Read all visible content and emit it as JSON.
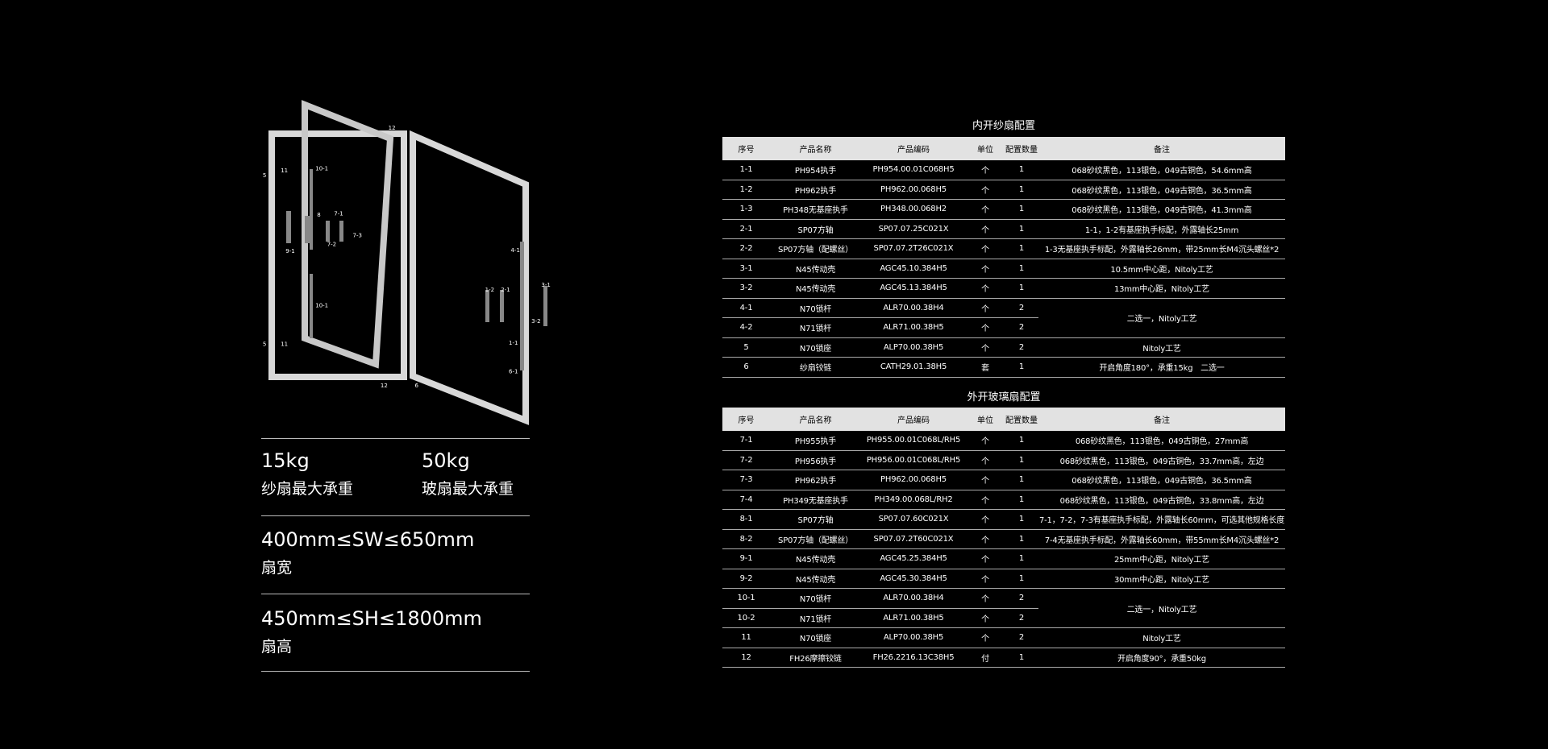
{
  "diagram": {
    "labels": [
      "12",
      "10-1",
      "11",
      "5",
      "9-1",
      "8",
      "7-1",
      "7-3",
      "7-2",
      "10-1",
      "5",
      "11",
      "12",
      "6",
      "4-1",
      "1-2",
      "2-1",
      "3-1",
      "3-2",
      "1-1",
      "6-1"
    ]
  },
  "specs": [
    {
      "value": "15kg",
      "label": "纱扇最大承重"
    },
    {
      "value": "50kg",
      "label": "玻扇最大承重"
    },
    {
      "value": "400mm≤SW≤650mm",
      "label": "扇宽"
    },
    {
      "value": "450mm≤SH≤1800mm",
      "label": "扇高"
    }
  ],
  "tables": [
    {
      "title": "内开纱扇配置",
      "headers": [
        "序号",
        "产品名称",
        "产品编码",
        "单位",
        "配置数量",
        "备注"
      ],
      "rows": [
        [
          "1-1",
          "PH954执手",
          "PH954.00.01C068H5",
          "个",
          "1",
          "068砂纹黑色，113银色，049古铜色，54.6mm高"
        ],
        [
          "1-2",
          "PH962执手",
          "PH962.00.068H5",
          "个",
          "1",
          "068砂纹黑色，113银色，049古铜色，36.5mm高"
        ],
        [
          "1-3",
          "PH348无基座执手",
          "PH348.00.068H2",
          "个",
          "1",
          "068砂纹黑色，113银色，049古铜色，41.3mm高"
        ],
        [
          "2-1",
          "SP07方轴",
          "SP07.07.25C021X",
          "个",
          "1",
          "1-1，1-2有基座执手标配，外露轴长25mm"
        ],
        [
          "2-2",
          "SP07方轴（配螺丝）",
          "SP07.07.2T26C021X",
          "个",
          "1",
          "1-3无基座执手标配，外露轴长26mm，带25mm长M4沉头螺丝*2"
        ],
        [
          "3-1",
          "N45传动壳",
          "AGC45.10.384H5",
          "个",
          "1",
          "10.5mm中心距，Nitoly工艺"
        ],
        [
          "3-2",
          "N45传动壳",
          "AGC45.13.384H5",
          "个",
          "1",
          "13mm中心距，Nitoly工艺"
        ],
        [
          "4-1",
          "N70锁杆",
          "ALR70.00.38H4",
          "个",
          "2",
          "二选一，Nitoly工艺"
        ],
        [
          "4-2",
          "N71锁杆",
          "ALR71.00.38H5",
          "个",
          "2"
        ],
        [
          "5",
          "N70锁座",
          "ALP70.00.38H5",
          "个",
          "2",
          "Nitoly工艺"
        ],
        [
          "6",
          "纱扇铰链",
          "CATH29.01.38H5",
          "套",
          "1",
          "开启角度180°，承重15kg　二选一"
        ]
      ]
    },
    {
      "title": "外开玻璃扇配置",
      "headers": [
        "序号",
        "产品名称",
        "产品编码",
        "单位",
        "配置数量",
        "备注"
      ],
      "rows": [
        [
          "7-1",
          "PH955执手",
          "PH955.00.01C068L/RH5",
          "个",
          "1",
          "068砂纹黑色，113银色，049古铜色，27mm高"
        ],
        [
          "7-2",
          "PH956执手",
          "PH956.00.01C068L/RH5",
          "个",
          "1",
          "068砂纹黑色，113银色，049古铜色，33.7mm高，左边"
        ],
        [
          "7-3",
          "PH962执手",
          "PH962.00.068H5",
          "个",
          "1",
          "068砂纹黑色，113银色，049古铜色，36.5mm高"
        ],
        [
          "7-4",
          "PH349无基座执手",
          "PH349.00.068L/RH2",
          "个",
          "1",
          "068砂纹黑色，113银色，049古铜色，33.8mm高，左边"
        ],
        [
          "8-1",
          "SP07方轴",
          "SP07.07.60C021X",
          "个",
          "1",
          "7-1，7-2，7-3有基座执手标配，外露轴长60mm，可选其他规格长度"
        ],
        [
          "8-2",
          "SP07方轴（配螺丝）",
          "SP07.07.2T60C021X",
          "个",
          "1",
          "7-4无基座执手标配，外露轴长60mm，带55mm长M4沉头螺丝*2"
        ],
        [
          "9-1",
          "N45传动壳",
          "AGC45.25.384H5",
          "个",
          "1",
          "25mm中心距，Nitoly工艺"
        ],
        [
          "9-2",
          "N45传动壳",
          "AGC45.30.384H5",
          "个",
          "1",
          "30mm中心距，Nitoly工艺"
        ],
        [
          "10-1",
          "N70锁杆",
          "ALR70.00.38H4",
          "个",
          "2",
          "二选一，Nitoly工艺"
        ],
        [
          "10-2",
          "N71锁杆",
          "ALR71.00.38H5",
          "个",
          "2"
        ],
        [
          "11",
          "N70锁座",
          "ALP70.00.38H5",
          "个",
          "2",
          "Nitoly工艺"
        ],
        [
          "12",
          "FH26摩擦铰链",
          "FH26.2216.13C38H5",
          "付",
          "1",
          "开启角度90°，承重50kg"
        ]
      ]
    }
  ]
}
